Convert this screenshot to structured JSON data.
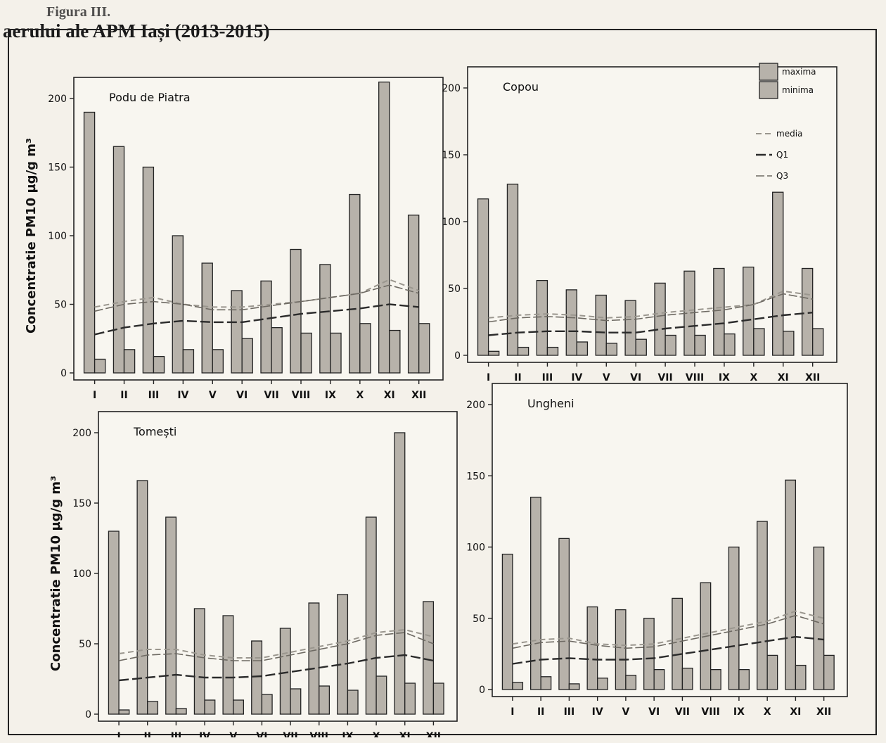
{
  "title": {
    "line1": "Figura III.",
    "line2": "aerului ale APM Iași (2013-2015)"
  },
  "legend": {
    "maxima": "maxima",
    "minima": "minima",
    "media": "media",
    "q1": "Q1",
    "q3": "Q3"
  },
  "colors": {
    "bar": "#b7b2aa",
    "line": "#2b2b2b",
    "frame": "#222222"
  },
  "chart_data": [
    {
      "type": "bar",
      "name": "Podu de Piatra",
      "ylabel": "Concentratie PM10  µg/g m³",
      "ylim": [
        0,
        200
      ],
      "yticks": [
        0,
        50,
        100,
        150,
        200
      ],
      "categories": [
        "I",
        "II",
        "III",
        "IV",
        "V",
        "VI",
        "VII",
        "VIII",
        "IX",
        "X",
        "XI",
        "XII"
      ],
      "series": [
        {
          "name": "maxima",
          "values": [
            190,
            165,
            150,
            100,
            80,
            60,
            67,
            90,
            79,
            130,
            212,
            115
          ]
        },
        {
          "name": "minima",
          "values": [
            10,
            17,
            12,
            17,
            17,
            25,
            33,
            29,
            29,
            36,
            31,
            36
          ]
        },
        {
          "name": "media",
          "values": [
            48,
            52,
            55,
            50,
            48,
            48,
            50,
            52,
            55,
            58,
            68,
            60
          ]
        },
        {
          "name": "Q1",
          "values": [
            28,
            33,
            36,
            38,
            37,
            37,
            40,
            43,
            45,
            47,
            50,
            48
          ]
        },
        {
          "name": "Q3",
          "values": [
            45,
            50,
            52,
            50,
            46,
            46,
            49,
            52,
            55,
            58,
            64,
            58
          ]
        }
      ]
    },
    {
      "type": "bar",
      "name": "Copou",
      "ylabel": "",
      "ylim": [
        0,
        200
      ],
      "yticks": [
        0,
        50,
        100,
        150,
        200
      ],
      "categories": [
        "I",
        "II",
        "III",
        "IV",
        "V",
        "VI",
        "VII",
        "VIII",
        "IX",
        "X",
        "XI",
        "XII"
      ],
      "series": [
        {
          "name": "maxima",
          "values": [
            117,
            128,
            56,
            49,
            45,
            41,
            54,
            63,
            65,
            66,
            122,
            65
          ]
        },
        {
          "name": "minima",
          "values": [
            3,
            6,
            6,
            10,
            9,
            12,
            15,
            15,
            16,
            20,
            18,
            20
          ]
        },
        {
          "name": "media",
          "values": [
            28,
            30,
            31,
            30,
            28,
            29,
            32,
            34,
            36,
            38,
            48,
            45
          ]
        },
        {
          "name": "Q1",
          "values": [
            15,
            17,
            18,
            18,
            17,
            17,
            20,
            22,
            24,
            27,
            30,
            32
          ]
        },
        {
          "name": "Q3",
          "values": [
            25,
            28,
            29,
            28,
            26,
            27,
            30,
            32,
            34,
            38,
            46,
            42
          ]
        }
      ]
    },
    {
      "type": "bar",
      "name": "Tomești",
      "ylabel": "Concentratie PM10  µg/g m³",
      "ylim": [
        0,
        200
      ],
      "yticks": [
        0,
        50,
        100,
        150,
        200
      ],
      "categories": [
        "I",
        "II",
        "III",
        "IV",
        "V",
        "VI",
        "VII",
        "VIII",
        "IX",
        "X",
        "XI",
        "XII"
      ],
      "series": [
        {
          "name": "maxima",
          "values": [
            130,
            166,
            140,
            75,
            70,
            52,
            61,
            79,
            85,
            140,
            200,
            80
          ]
        },
        {
          "name": "minima",
          "values": [
            3,
            9,
            4,
            10,
            10,
            14,
            18,
            20,
            17,
            27,
            22,
            22
          ]
        },
        {
          "name": "media",
          "values": [
            43,
            46,
            46,
            42,
            40,
            40,
            44,
            48,
            52,
            58,
            60,
            55
          ]
        },
        {
          "name": "Q1",
          "values": [
            24,
            26,
            28,
            26,
            26,
            27,
            30,
            33,
            36,
            40,
            42,
            38
          ]
        },
        {
          "name": "Q3",
          "values": [
            38,
            42,
            43,
            40,
            38,
            38,
            42,
            46,
            50,
            56,
            58,
            50
          ]
        }
      ]
    },
    {
      "type": "bar",
      "name": "Ungheni",
      "ylabel": "",
      "ylim": [
        0,
        200
      ],
      "yticks": [
        0,
        50,
        100,
        150,
        200
      ],
      "categories": [
        "I",
        "II",
        "III",
        "IV",
        "V",
        "VI",
        "VII",
        "VIII",
        "IX",
        "X",
        "XI",
        "XII"
      ],
      "series": [
        {
          "name": "maxima",
          "values": [
            95,
            135,
            106,
            58,
            56,
            50,
            64,
            75,
            100,
            118,
            147,
            100
          ]
        },
        {
          "name": "minima",
          "values": [
            5,
            9,
            4,
            8,
            10,
            14,
            15,
            14,
            14,
            24,
            17,
            24
          ]
        },
        {
          "name": "media",
          "values": [
            32,
            35,
            36,
            32,
            31,
            32,
            36,
            40,
            44,
            48,
            55,
            50
          ]
        },
        {
          "name": "Q1",
          "values": [
            18,
            21,
            22,
            21,
            21,
            22,
            25,
            28,
            31,
            34,
            37,
            35
          ]
        },
        {
          "name": "Q3",
          "values": [
            29,
            33,
            34,
            31,
            29,
            30,
            34,
            38,
            42,
            46,
            52,
            46
          ]
        }
      ]
    }
  ]
}
